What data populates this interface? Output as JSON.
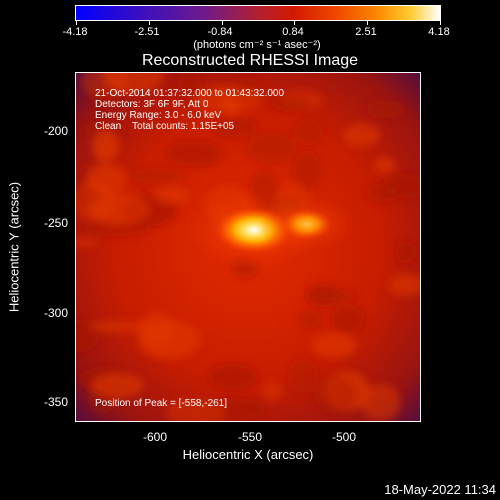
{
  "colorbar": {
    "ticks": [
      "-4.18",
      "-2.51",
      "-0.84",
      "0.84",
      "2.51",
      "4.18"
    ],
    "unit_label": "(photons cm⁻² s⁻¹ asec⁻²)"
  },
  "title": "Reconstructed RHESSI Image",
  "info": {
    "line1": "21-Oct-2014 01:37:32.000 to 01:43:32.000",
    "line2": "Detectors: 3F 6F 9F, Att 0",
    "line3": "Energy Range: 3.0 - 6.0 keV",
    "line4": "Clean    Total counts: 1.15E+05",
    "peak": "Position of Peak = [-558,-261]"
  },
  "chart_data": {
    "type": "heatmap",
    "xlabel": "Heliocentric X (arcsec)",
    "ylabel": "Heliocentric Y (arcsec)",
    "xlim": [
      -652,
      -470
    ],
    "ylim": [
      -362,
      -178
    ],
    "x_ticks": [
      "-600",
      "-550",
      "-500"
    ],
    "y_ticks": [
      "-200",
      "-250",
      "-300",
      "-350"
    ],
    "colorbar_range": [
      -4.18,
      4.18
    ],
    "sources": [
      {
        "x": -558,
        "y": -261,
        "value": 4.18
      },
      {
        "x": -530,
        "y": -258,
        "value": 2.6
      }
    ]
  },
  "timestamp": "18-May-2022 11:34"
}
